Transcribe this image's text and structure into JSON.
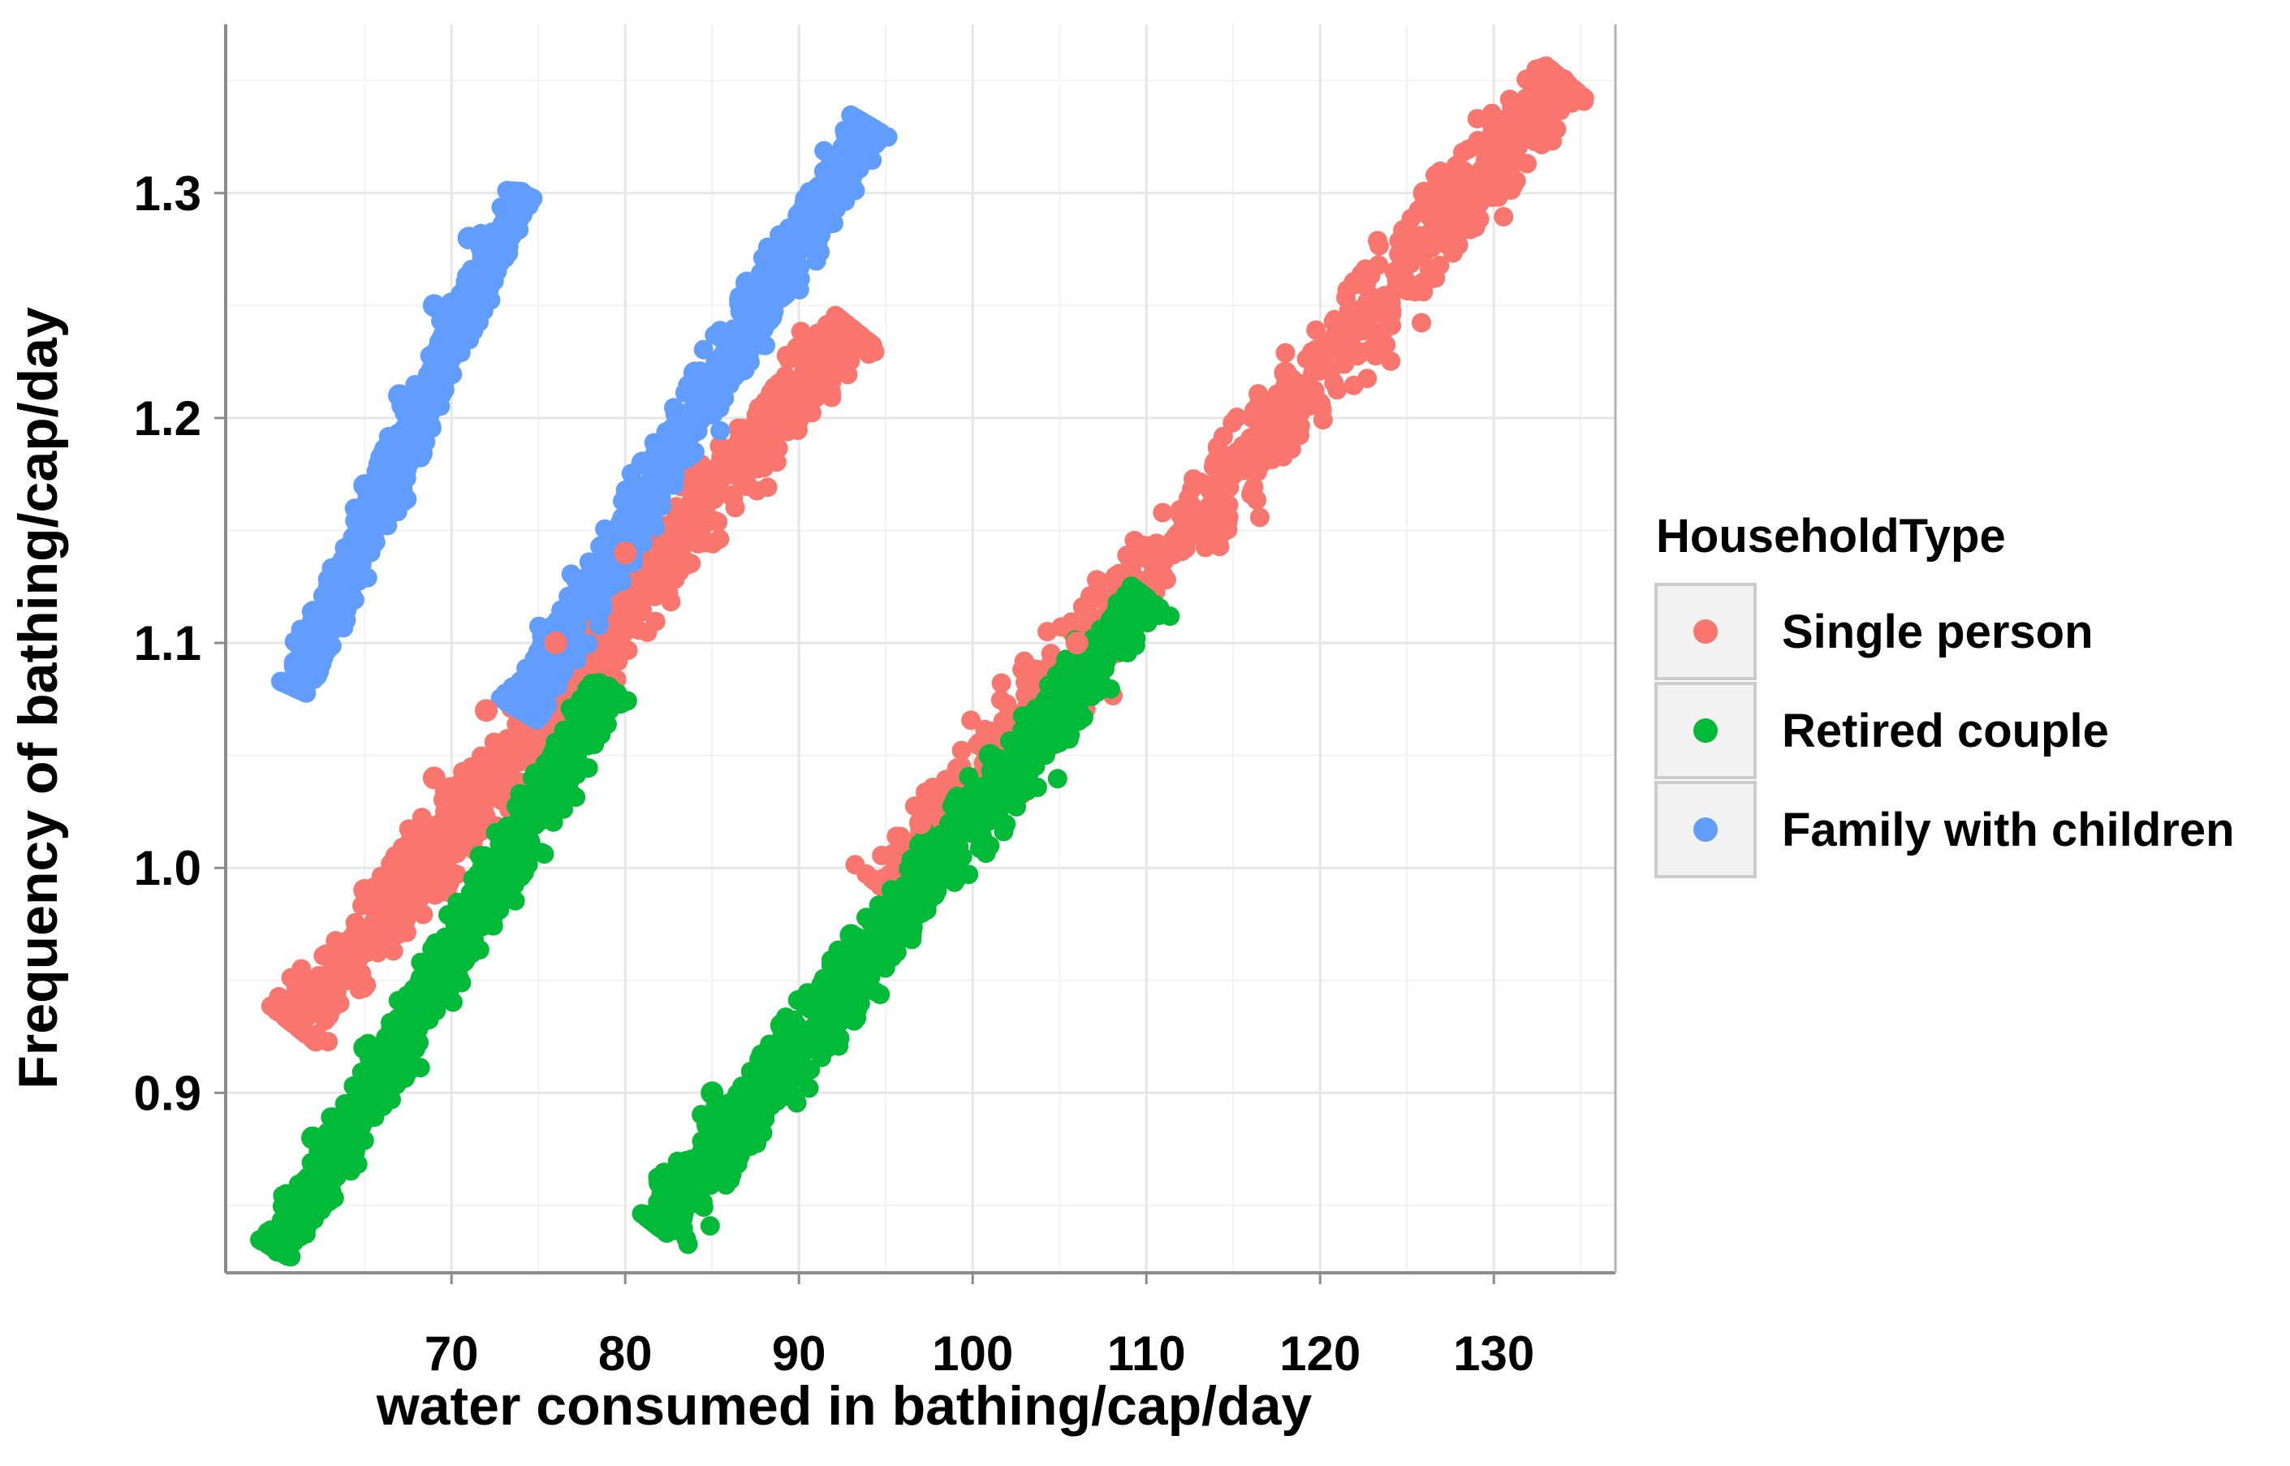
{
  "chart_data": {
    "type": "scatter",
    "title": "",
    "xlabel": "water consumed in bathing/cap/day",
    "ylabel": "Frequency of bathing/cap/day",
    "xlim": [
      57,
      137
    ],
    "ylim": [
      0.82,
      1.375
    ],
    "x_ticks": [
      70,
      80,
      90,
      100,
      110,
      120,
      130
    ],
    "x_tick_labels": [
      "70",
      "80",
      "90",
      "100",
      "110",
      "120",
      "130"
    ],
    "y_ticks": [
      0.9,
      1.0,
      1.1,
      1.2,
      1.3
    ],
    "y_tick_labels": [
      "0.9",
      "1.0",
      "1.1",
      "1.2",
      "1.3"
    ],
    "grid": true,
    "legend": {
      "title": "HouseholdType",
      "placement": "right",
      "entries": [
        "Single person",
        "Retired couple",
        "Family with children"
      ]
    },
    "series": [
      {
        "name": "Single person",
        "color": "#F8766D",
        "clusters": [
          {
            "x": [
              61,
              93
            ],
            "y": [
              0.93,
              1.24
            ]
          },
          {
            "x": [
              95,
              134
            ],
            "y": [
              0.99,
              1.35
            ]
          }
        ],
        "points": [
          {
            "x": 63,
            "y": 0.95
          },
          {
            "x": 65,
            "y": 0.99
          },
          {
            "x": 69,
            "y": 1.04
          },
          {
            "x": 72,
            "y": 1.07
          },
          {
            "x": 76,
            "y": 1.1
          },
          {
            "x": 80,
            "y": 1.14
          },
          {
            "x": 84,
            "y": 1.17
          },
          {
            "x": 88,
            "y": 1.19
          },
          {
            "x": 93,
            "y": 1.23
          },
          {
            "x": 97,
            "y": 1.02
          },
          {
            "x": 101,
            "y": 1.06
          },
          {
            "x": 106,
            "y": 1.1
          },
          {
            "x": 110,
            "y": 1.14
          },
          {
            "x": 114,
            "y": 1.18
          },
          {
            "x": 118,
            "y": 1.22
          },
          {
            "x": 122,
            "y": 1.26
          },
          {
            "x": 126,
            "y": 1.3
          },
          {
            "x": 130,
            "y": 1.33
          },
          {
            "x": 134,
            "y": 1.35
          }
        ]
      },
      {
        "name": "Retired couple",
        "color": "#00BA38",
        "clusters": [
          {
            "x": [
              60,
              79
            ],
            "y": [
              0.83,
              1.08
            ]
          },
          {
            "x": [
              82,
              110
            ],
            "y": [
              0.84,
              1.12
            ]
          }
        ],
        "points": [
          {
            "x": 60,
            "y": 0.83
          },
          {
            "x": 62,
            "y": 0.88
          },
          {
            "x": 65,
            "y": 0.92
          },
          {
            "x": 69,
            "y": 0.96
          },
          {
            "x": 73,
            "y": 1.0
          },
          {
            "x": 76,
            "y": 1.04
          },
          {
            "x": 79,
            "y": 1.08
          },
          {
            "x": 82,
            "y": 0.86
          },
          {
            "x": 85,
            "y": 0.9
          },
          {
            "x": 89,
            "y": 0.93
          },
          {
            "x": 93,
            "y": 0.97
          },
          {
            "x": 97,
            "y": 1.01
          },
          {
            "x": 101,
            "y": 1.05
          },
          {
            "x": 105,
            "y": 1.08
          },
          {
            "x": 108,
            "y": 1.11
          }
        ]
      },
      {
        "name": "Family with children",
        "color": "#619CFF",
        "clusters": [
          {
            "x": [
              61,
              74
            ],
            "y": [
              1.08,
              1.3
            ]
          },
          {
            "x": [
              74,
              94
            ],
            "y": [
              1.07,
              1.33
            ]
          }
        ],
        "points": [
          {
            "x": 61,
            "y": 1.09
          },
          {
            "x": 63,
            "y": 1.12
          },
          {
            "x": 65,
            "y": 1.17
          },
          {
            "x": 67,
            "y": 1.21
          },
          {
            "x": 69,
            "y": 1.25
          },
          {
            "x": 71,
            "y": 1.28
          },
          {
            "x": 74,
            "y": 1.3
          },
          {
            "x": 75,
            "y": 1.08
          },
          {
            "x": 78,
            "y": 1.13
          },
          {
            "x": 81,
            "y": 1.18
          },
          {
            "x": 84,
            "y": 1.22
          },
          {
            "x": 87,
            "y": 1.26
          },
          {
            "x": 90,
            "y": 1.29
          },
          {
            "x": 93,
            "y": 1.32
          }
        ]
      }
    ]
  }
}
